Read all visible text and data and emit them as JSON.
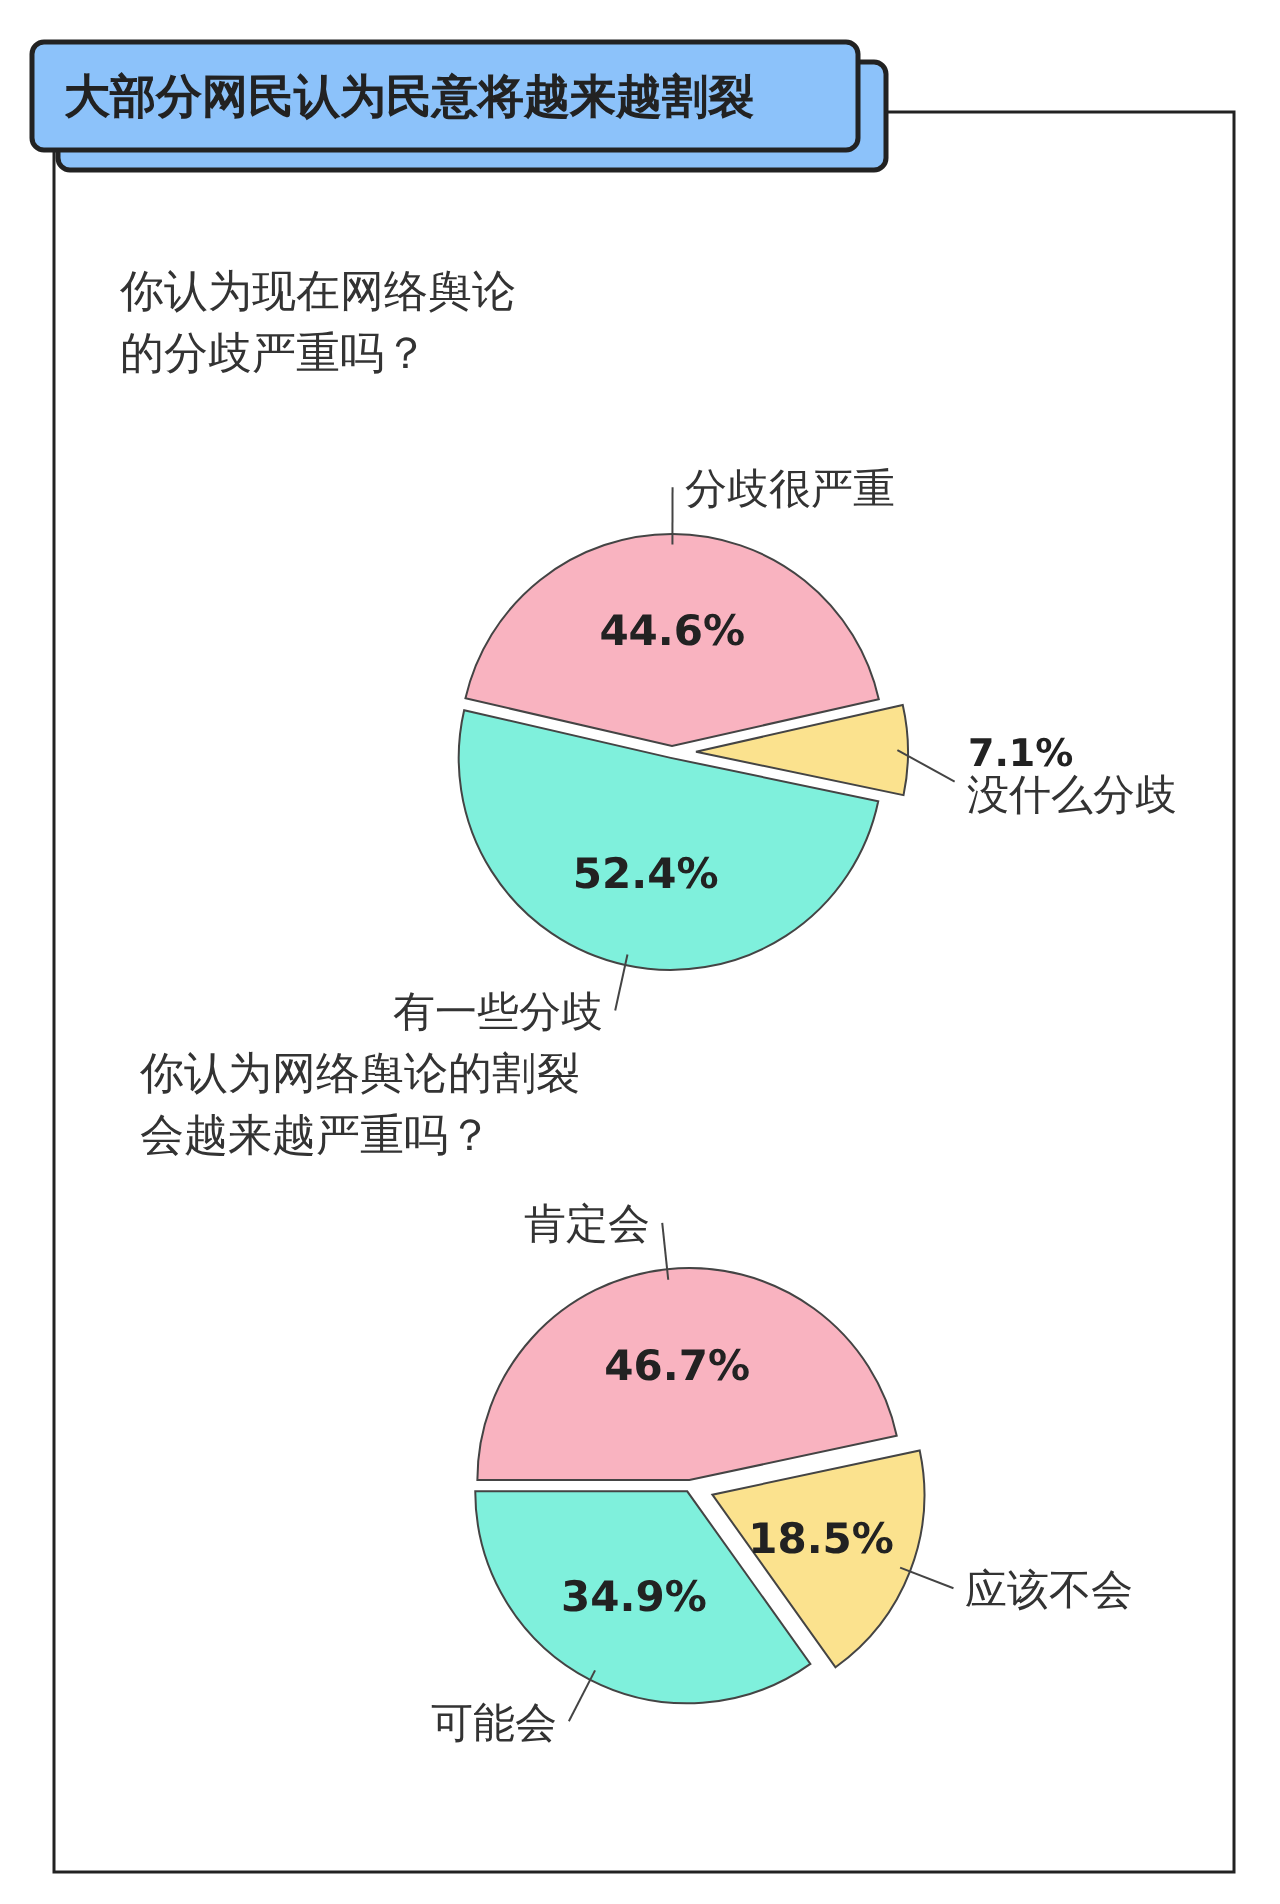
{
  "chart_data": [
    {
      "type": "pie",
      "title": "大部分网民认为民意将越来越割裂",
      "subtitle": "你认为现在网络舆论的分歧严重吗？",
      "categories": [
        "分歧很严重",
        "没什么分歧",
        "有一些分歧"
      ],
      "values": [
        44.6,
        7.1,
        52.4
      ],
      "value_labels": [
        "44.6%",
        "7.1%",
        "52.4%"
      ],
      "colors": [
        "#f9b3c0",
        "#fbe28e",
        "#7ff0dc"
      ]
    },
    {
      "type": "pie",
      "title": "你认为网络舆论的割裂会越来越严重吗？",
      "categories": [
        "肯定会",
        "应该不会",
        "可能会"
      ],
      "values": [
        46.7,
        18.5,
        34.9
      ],
      "value_labels": [
        "46.7%",
        "18.5%",
        "34.9%"
      ],
      "colors": [
        "#f9b3c0",
        "#fbe28e",
        "#7ff0dc"
      ]
    }
  ]
}
